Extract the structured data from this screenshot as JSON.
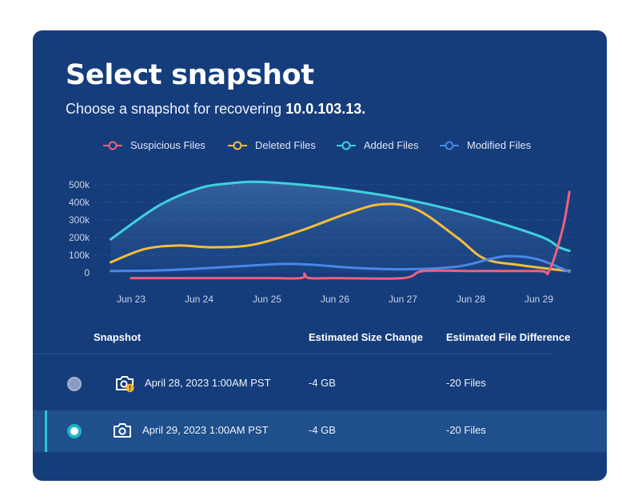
{
  "header": {
    "title": "Select snapshot",
    "subtitle_prefix": "Choose a snapshot for recovering ",
    "subtitle_target": "10.0.103.13."
  },
  "legend": [
    {
      "label": "Suspicious Files",
      "color": "#f0607e"
    },
    {
      "label": "Deleted Files",
      "color": "#f6bd3b"
    },
    {
      "label": "Added Files",
      "color": "#3fd1df"
    },
    {
      "label": "Modified Files",
      "color": "#4a86e8"
    }
  ],
  "chart_data": {
    "type": "line",
    "x": [
      "Jun 23",
      "Jun 24",
      "Jun 25",
      "Jun 26",
      "Jun 27",
      "Jun 28",
      "Jun 29"
    ],
    "y_ticks": [
      "500k",
      "400k",
      "300k",
      "200k",
      "100k",
      "0"
    ],
    "ylim": [
      0,
      500000
    ],
    "grid": true,
    "legend_position": "top",
    "series": [
      {
        "name": "Suspicious Files",
        "color": "#f0607e",
        "points": [
          [
            0.0,
            -30000
          ],
          [
            1.0,
            -30000
          ],
          [
            2.0,
            -30000
          ],
          [
            2.5,
            -30000
          ],
          [
            2.55,
            -5000
          ],
          [
            2.62,
            -30000
          ],
          [
            3.0,
            -30000
          ],
          [
            4.0,
            -30000
          ],
          [
            4.3,
            10000
          ],
          [
            5.0,
            10000
          ],
          [
            6.0,
            10000
          ],
          [
            6.15,
            10000
          ],
          [
            6.35,
            250000
          ],
          [
            6.45,
            460000
          ]
        ]
      },
      {
        "name": "Deleted Files",
        "color": "#f6bd3b",
        "points": [
          [
            -0.3,
            60000
          ],
          [
            0.2,
            135000
          ],
          [
            0.7,
            155000
          ],
          [
            1.2,
            145000
          ],
          [
            1.8,
            160000
          ],
          [
            2.5,
            240000
          ],
          [
            3.2,
            340000
          ],
          [
            3.7,
            390000
          ],
          [
            4.2,
            360000
          ],
          [
            4.8,
            200000
          ],
          [
            5.2,
            80000
          ],
          [
            5.7,
            45000
          ],
          [
            6.1,
            25000
          ],
          [
            6.45,
            10000
          ]
        ]
      },
      {
        "name": "Added Files",
        "color": "#3fd1df",
        "points": [
          [
            -0.3,
            190000
          ],
          [
            0.4,
            380000
          ],
          [
            1.0,
            480000
          ],
          [
            1.5,
            510000
          ],
          [
            2.0,
            515000
          ],
          [
            3.0,
            480000
          ],
          [
            4.0,
            420000
          ],
          [
            5.0,
            330000
          ],
          [
            6.0,
            210000
          ],
          [
            6.3,
            145000
          ],
          [
            6.45,
            125000
          ]
        ]
      },
      {
        "name": "Modified Files",
        "color": "#4a86e8",
        "points": [
          [
            -0.3,
            10000
          ],
          [
            0.5,
            15000
          ],
          [
            1.5,
            35000
          ],
          [
            2.2,
            50000
          ],
          [
            2.7,
            45000
          ],
          [
            3.2,
            30000
          ],
          [
            4.0,
            20000
          ],
          [
            4.8,
            35000
          ],
          [
            5.3,
            80000
          ],
          [
            5.6,
            95000
          ],
          [
            6.0,
            75000
          ],
          [
            6.45,
            5000
          ]
        ]
      }
    ]
  },
  "table": {
    "headers": {
      "snapshot": "Snapshot",
      "size_change": "Estimated Size Change",
      "file_diff": "Estimated File Difference"
    },
    "rows": [
      {
        "date": "April 28, 2023 1:00AM PST",
        "size_change": "-4 GB",
        "file_diff": "-20 Files",
        "selected": false,
        "warning": true
      },
      {
        "date": "April 29, 2023 1:00AM PST",
        "size_change": "-4 GB",
        "file_diff": "-20 Files",
        "selected": true,
        "warning": false
      }
    ]
  }
}
